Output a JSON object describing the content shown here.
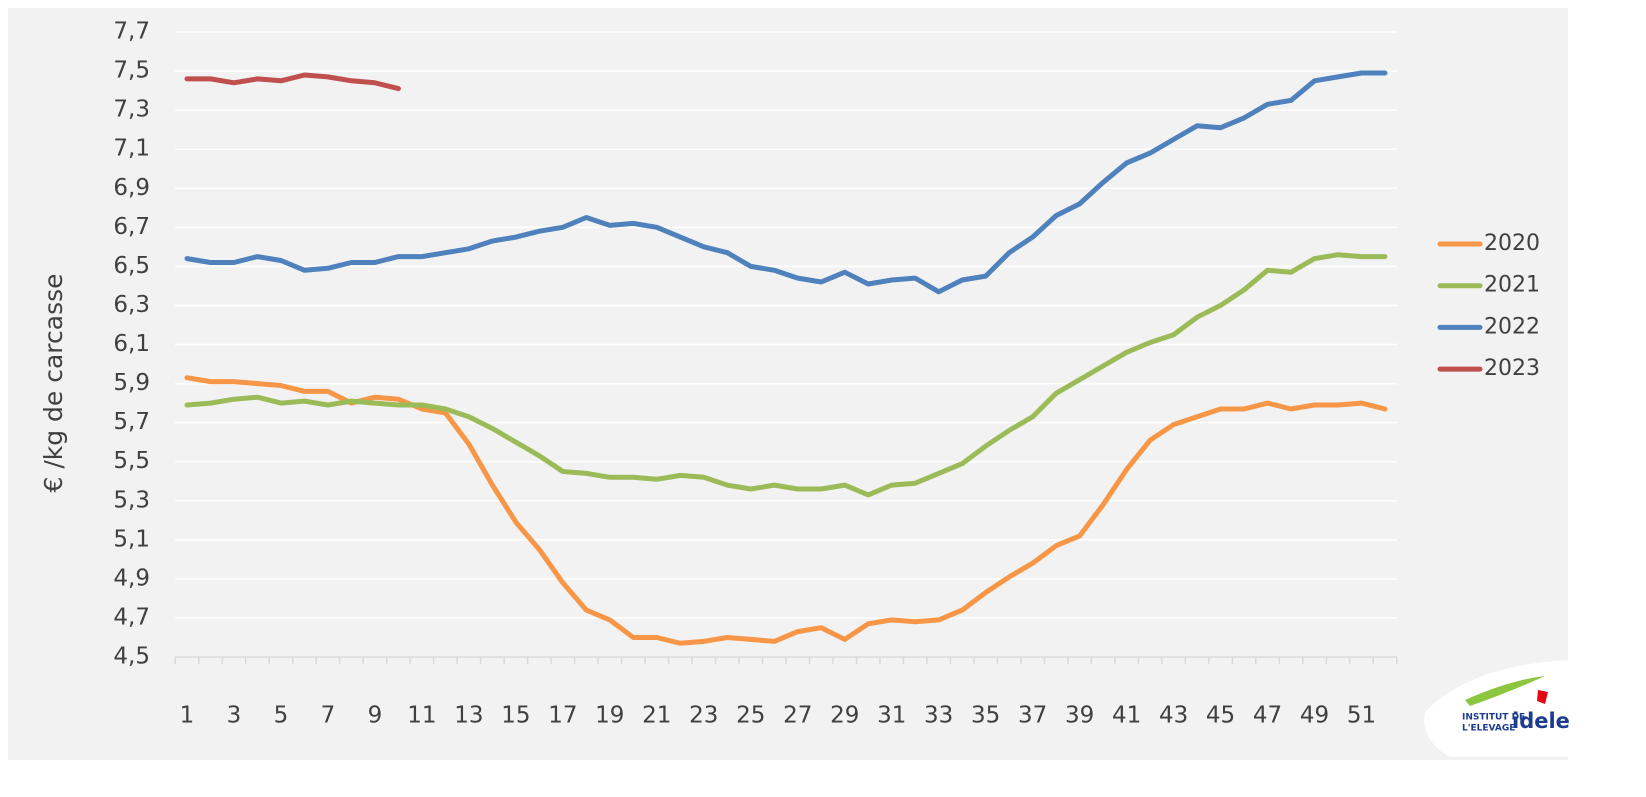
{
  "chart_data": {
    "type": "line",
    "y_label": "€ /kg de carcasse",
    "categories": [
      1,
      null,
      3,
      null,
      5,
      null,
      7,
      null,
      9,
      null,
      11,
      null,
      13,
      null,
      15,
      null,
      17,
      null,
      19,
      null,
      21,
      null,
      23,
      null,
      25,
      null,
      27,
      null,
      29,
      null,
      31,
      null,
      33,
      null,
      35,
      null,
      37,
      null,
      39,
      null,
      41,
      null,
      43,
      null,
      45,
      null,
      47,
      null,
      49,
      null,
      51,
      null
    ],
    "series": [
      {
        "name": "2020",
        "color": "#f79646",
        "values": [
          5.93,
          5.91,
          5.91,
          5.9,
          5.89,
          5.86,
          5.86,
          5.8,
          5.83,
          5.82,
          5.77,
          5.75,
          5.59,
          5.38,
          5.19,
          5.05,
          4.88,
          4.74,
          4.69,
          4.6,
          4.6,
          4.57,
          4.58,
          4.6,
          4.59,
          4.58,
          4.63,
          4.65,
          4.59,
          4.67,
          4.69,
          4.68,
          4.69,
          4.74,
          4.83,
          4.91,
          4.98,
          5.07,
          5.12,
          5.28,
          5.46,
          5.61,
          5.69,
          5.73,
          5.77,
          5.77,
          5.8,
          5.77,
          5.79,
          5.79,
          5.8,
          5.77
        ]
      },
      {
        "name": "2021",
        "color": "#9bbb59",
        "values": [
          5.79,
          5.8,
          5.82,
          5.83,
          5.8,
          5.81,
          5.79,
          5.81,
          5.8,
          5.79,
          5.79,
          5.77,
          5.73,
          5.67,
          5.6,
          5.53,
          5.45,
          5.44,
          5.42,
          5.42,
          5.41,
          5.43,
          5.42,
          5.38,
          5.36,
          5.38,
          5.36,
          5.36,
          5.38,
          5.33,
          5.38,
          5.39,
          5.44,
          5.49,
          5.58,
          5.66,
          5.73,
          5.85,
          5.92,
          5.99,
          6.06,
          6.11,
          6.15,
          6.24,
          6.3,
          6.38,
          6.48,
          6.47,
          6.54,
          6.56,
          6.55,
          6.55
        ]
      },
      {
        "name": "2022",
        "color": "#4f81bd",
        "values": [
          6.54,
          6.52,
          6.52,
          6.55,
          6.53,
          6.48,
          6.49,
          6.52,
          6.52,
          6.55,
          6.55,
          6.57,
          6.59,
          6.63,
          6.65,
          6.68,
          6.7,
          6.75,
          6.71,
          6.72,
          6.7,
          6.65,
          6.6,
          6.57,
          6.5,
          6.48,
          6.44,
          6.42,
          6.47,
          6.41,
          6.43,
          6.44,
          6.37,
          6.43,
          6.45,
          6.57,
          6.65,
          6.76,
          6.82,
          6.93,
          7.03,
          7.08,
          7.15,
          7.22,
          7.21,
          7.26,
          7.33,
          7.35,
          7.45,
          7.47,
          7.49,
          7.49
        ]
      },
      {
        "name": "2023",
        "color": "#c0504d",
        "values": [
          7.46,
          7.46,
          7.44,
          7.46,
          7.45,
          7.48,
          7.47,
          7.45,
          7.44,
          7.41,
          null,
          null,
          null,
          null,
          null,
          null,
          null,
          null,
          null,
          null,
          null,
          null,
          null,
          null,
          null,
          null,
          null,
          null,
          null,
          null,
          null,
          null,
          null,
          null,
          null,
          null,
          null,
          null,
          null,
          null,
          null,
          null,
          null,
          null,
          null,
          null,
          null,
          null,
          null,
          null,
          null,
          null
        ]
      }
    ],
    "ylim": [
      4.5,
      7.7
    ],
    "yticks": [
      {
        "value": 4.5,
        "label": "4,5"
      },
      {
        "value": 4.7,
        "label": "4,7"
      },
      {
        "value": 4.9,
        "label": "4,9"
      },
      {
        "value": 5.1,
        "label": "5,1"
      },
      {
        "value": 5.3,
        "label": "5,3"
      },
      {
        "value": 5.5,
        "label": "5,5"
      },
      {
        "value": 5.7,
        "label": "5,7"
      },
      {
        "value": 5.9,
        "label": "5,9"
      },
      {
        "value": 6.1,
        "label": "6,1"
      },
      {
        "value": 6.3,
        "label": "6,3"
      },
      {
        "value": 6.5,
        "label": "6,5"
      },
      {
        "value": 6.7,
        "label": "6,7"
      },
      {
        "value": 6.9,
        "label": "6,9"
      },
      {
        "value": 7.1,
        "label": "7,1"
      },
      {
        "value": 7.3,
        "label": "7,3"
      },
      {
        "value": 7.5,
        "label": "7,5"
      },
      {
        "value": 7.7,
        "label": "7,7"
      }
    ],
    "grid": true,
    "legend": "right"
  },
  "logo": {
    "line1": "INSTITUT DE",
    "line2": "L'ELEVAGE",
    "brand": "idele"
  }
}
